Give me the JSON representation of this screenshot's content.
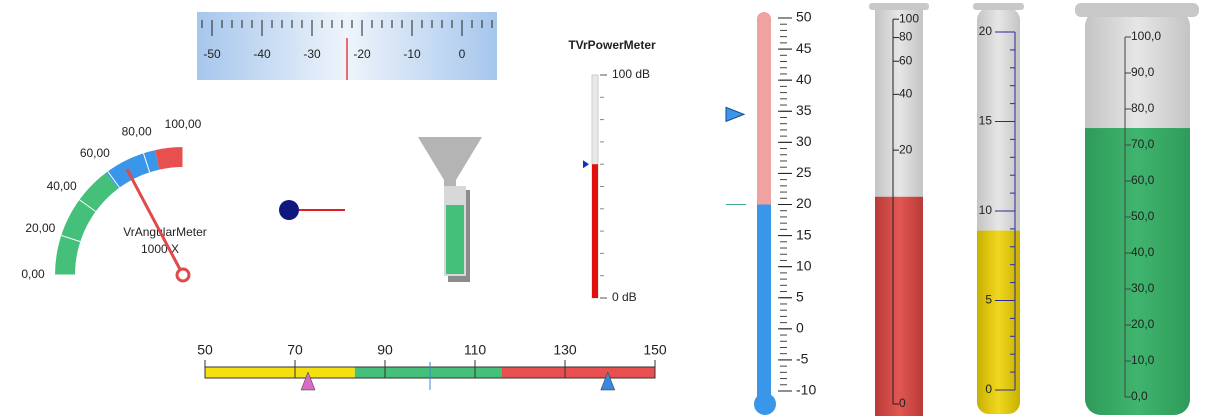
{
  "ruler": {
    "range": [
      -53,
      7
    ],
    "ticks": [
      -50,
      -40,
      -30,
      -20,
      -10,
      0
    ],
    "marker": -23
  },
  "angular_meter": {
    "title": "VrAngularMeter",
    "subtitle": "1000 X",
    "range": [
      0,
      100
    ],
    "ticks": [
      {
        "value": 0,
        "label": "0,00"
      },
      {
        "value": 20,
        "label": "20,00"
      },
      {
        "value": 40,
        "label": "40,00"
      },
      {
        "value": 60,
        "label": "60,00"
      },
      {
        "value": 80,
        "label": "80,00"
      },
      {
        "value": 100,
        "label": "100,00"
      }
    ],
    "zones": [
      {
        "to": 59,
        "color": "#45c07a"
      },
      {
        "to": 86,
        "color": "#3a96e8"
      },
      {
        "to": 100,
        "color": "#e85050"
      }
    ],
    "value": 69
  },
  "power_meter": {
    "title": "TVrPowerMeter",
    "range": [
      0,
      100
    ],
    "ticks": [
      {
        "value": 0,
        "label": "0 dB"
      },
      {
        "value": 100,
        "label": "100 dB"
      }
    ],
    "value": 60
  },
  "slider": {
    "range": [
      50,
      150
    ],
    "ticks": [
      50,
      70,
      90,
      110,
      130,
      150
    ],
    "zones": [
      {
        "to": 83.3,
        "color": "#f4e010"
      },
      {
        "to": 116,
        "color": "#45c07a"
      },
      {
        "to": 150,
        "color": "#e85050"
      }
    ],
    "markers": [
      {
        "value": 72.9,
        "color": "#d86ac8"
      },
      {
        "value": 139.5,
        "color": "#3a86e0"
      }
    ],
    "center": 100
  },
  "thermometer": {
    "range": [
      -10,
      50
    ],
    "ticks": [
      -10,
      -5,
      0,
      5,
      10,
      15,
      20,
      25,
      30,
      35,
      40,
      45,
      50
    ],
    "value": 20,
    "pointer": 34.5
  },
  "tube_log": {
    "ticks": [
      0,
      20,
      40,
      60,
      80,
      100
    ],
    "value": 11
  },
  "tube_yellow": {
    "range": [
      0,
      20
    ],
    "ticks": [
      0,
      5,
      10,
      15,
      20
    ],
    "value": 8.9
  },
  "tube_green": {
    "range": [
      0,
      100
    ],
    "ticks": [
      {
        "value": 0,
        "label": "0,0"
      },
      {
        "value": 10,
        "label": "10,0"
      },
      {
        "value": 20,
        "label": "20,0"
      },
      {
        "value": 30,
        "label": "30,0"
      },
      {
        "value": 40,
        "label": "40,0"
      },
      {
        "value": 50,
        "label": "50,0"
      },
      {
        "value": 60,
        "label": "60,0"
      },
      {
        "value": 70,
        "label": "70,0"
      },
      {
        "value": 80,
        "label": "80,0"
      },
      {
        "value": 90,
        "label": "90,0"
      },
      {
        "value": 100,
        "label": "100,0"
      }
    ],
    "value": 74.7
  }
}
